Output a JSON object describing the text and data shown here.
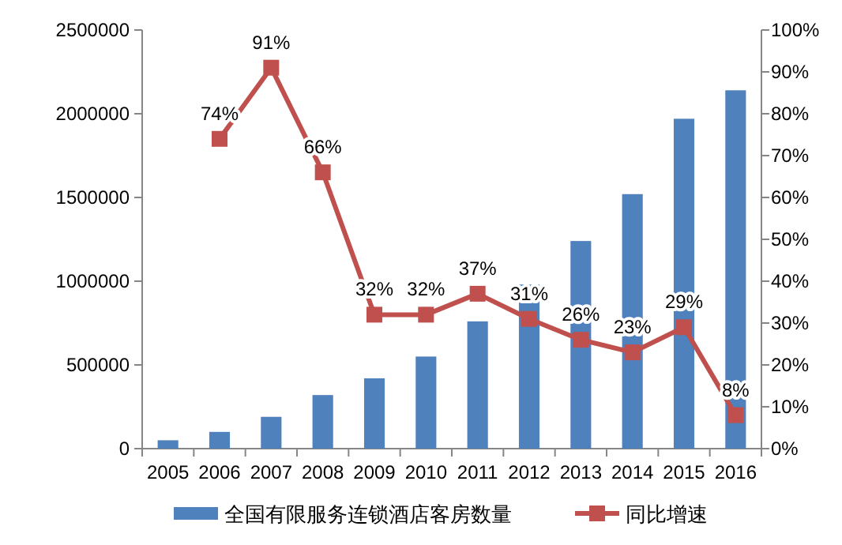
{
  "chart_data": {
    "type": "bar",
    "categories": [
      "2005",
      "2006",
      "2007",
      "2008",
      "2009",
      "2010",
      "2011",
      "2012",
      "2013",
      "2014",
      "2015",
      "2016"
    ],
    "series": [
      {
        "name": "全国有限服务连锁酒店客房数量",
        "color": "#4f81bd",
        "values": [
          50000,
          100000,
          190000,
          320000,
          420000,
          550000,
          760000,
          980000,
          1240000,
          1520000,
          1970000,
          2140000
        ]
      },
      {
        "name": "同比增速",
        "type": "line",
        "axis": "y2",
        "color": "#c0504d",
        "marker": "square",
        "values": [
          null,
          74,
          91,
          66,
          32,
          32,
          37,
          31,
          26,
          23,
          29,
          8
        ],
        "value_labels": [
          null,
          "74%",
          "91%",
          "66%",
          "32%",
          "32%",
          "37%",
          "31%",
          "26%",
          "23%",
          "29%",
          "8%"
        ]
      }
    ],
    "ylim": [
      0,
      2500000
    ],
    "yticks": [
      0,
      500000,
      1000000,
      1500000,
      2000000,
      2500000
    ],
    "y2lim": [
      0,
      100
    ],
    "y2ticks": [
      {
        "value": 0,
        "label": "0%"
      },
      {
        "value": 10,
        "label": "10%"
      },
      {
        "value": 20,
        "label": "20%"
      },
      {
        "value": 30,
        "label": "30%"
      },
      {
        "value": 40,
        "label": "40%"
      },
      {
        "value": 50,
        "label": "50%"
      },
      {
        "value": 60,
        "label": "60%"
      },
      {
        "value": 70,
        "label": "70%"
      },
      {
        "value": 80,
        "label": "80%"
      },
      {
        "value": 90,
        "label": "90%"
      },
      {
        "value": 100,
        "label": "100%"
      }
    ],
    "legend": "bottom",
    "grid": false
  }
}
